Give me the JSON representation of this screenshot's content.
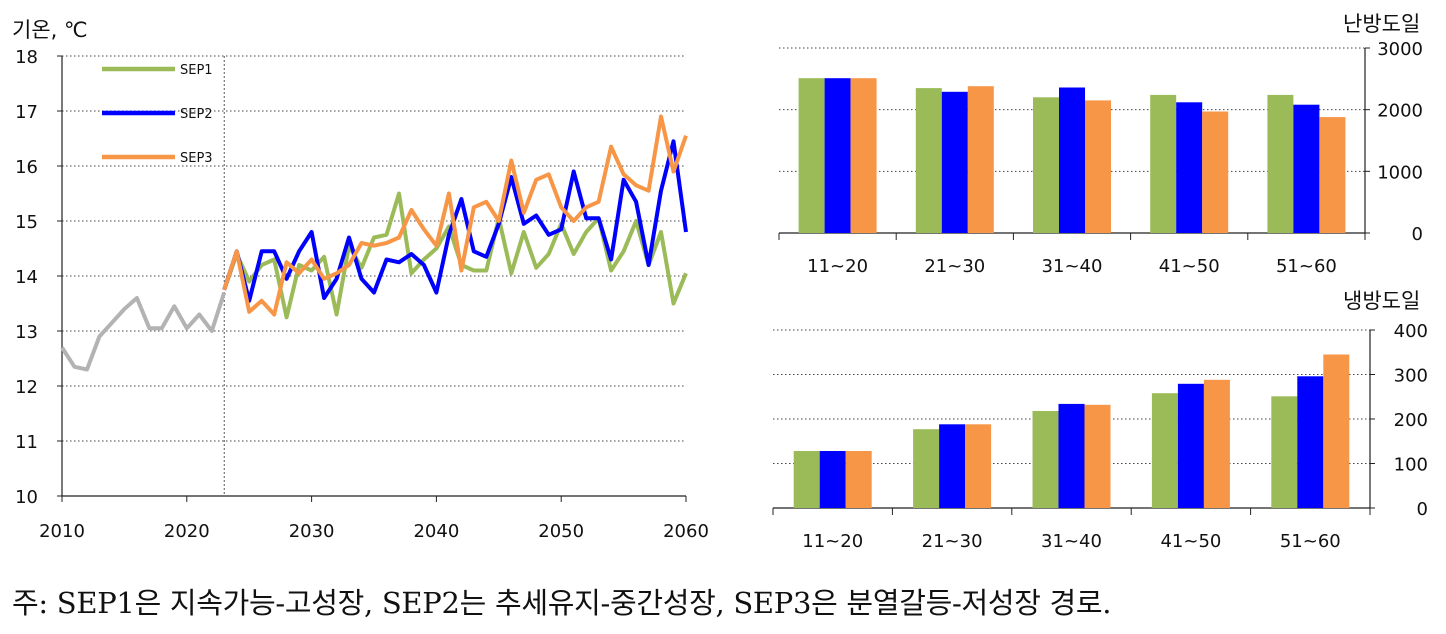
{
  "chart_data": [
    {
      "type": "line",
      "ylabel": "기온, ℃",
      "ylim": [
        10,
        18
      ],
      "yticks": [
        10,
        11,
        12,
        13,
        14,
        15,
        16,
        17,
        18
      ],
      "xlim": [
        2010,
        2060
      ],
      "xticks": [
        2010,
        2020,
        2030,
        2040,
        2050,
        2060
      ],
      "vertical_marker_x": 2023,
      "legend_position": "top-left",
      "colors": {
        "historical": "#b3b3b3",
        "SEP1": "#9bbb59",
        "SEP2": "#0000ff",
        "SEP3": "#f79646"
      },
      "historical": {
        "x": [
          2010,
          2011,
          2012,
          2013,
          2014,
          2015,
          2016,
          2017,
          2018,
          2019,
          2020,
          2021,
          2022,
          2023
        ],
        "values": [
          12.7,
          12.35,
          12.3,
          12.9,
          13.15,
          13.4,
          13.6,
          13.05,
          13.05,
          13.45,
          13.05,
          13.3,
          13.0,
          13.7
        ]
      },
      "series": [
        {
          "name": "SEP1",
          "x": [
            2023,
            2024,
            2025,
            2026,
            2027,
            2028,
            2029,
            2030,
            2031,
            2032,
            2033,
            2034,
            2035,
            2036,
            2037,
            2038,
            2039,
            2040,
            2041,
            2042,
            2043,
            2044,
            2045,
            2046,
            2047,
            2048,
            2049,
            2050,
            2051,
            2052,
            2053,
            2054,
            2055,
            2056,
            2057,
            2058,
            2059,
            2060
          ],
          "values": [
            13.75,
            14.4,
            13.9,
            14.2,
            14.3,
            13.25,
            14.2,
            14.1,
            14.35,
            13.3,
            14.55,
            14.15,
            14.7,
            14.75,
            15.5,
            14.05,
            14.3,
            14.5,
            14.9,
            14.2,
            14.1,
            14.1,
            15.05,
            14.05,
            14.8,
            14.15,
            14.4,
            14.95,
            14.4,
            14.8,
            15.05,
            14.1,
            14.45,
            15.0,
            14.2,
            14.8,
            13.5,
            14.05
          ]
        },
        {
          "name": "SEP2",
          "x": [
            2023,
            2024,
            2025,
            2026,
            2027,
            2028,
            2029,
            2030,
            2031,
            2032,
            2033,
            2034,
            2035,
            2036,
            2037,
            2038,
            2039,
            2040,
            2041,
            2042,
            2043,
            2044,
            2045,
            2046,
            2047,
            2048,
            2049,
            2050,
            2051,
            2052,
            2053,
            2054,
            2055,
            2056,
            2057,
            2058,
            2059,
            2060
          ],
          "values": [
            13.75,
            14.45,
            13.55,
            14.45,
            14.45,
            13.95,
            14.45,
            14.8,
            13.6,
            13.95,
            14.7,
            13.95,
            13.7,
            14.3,
            14.25,
            14.4,
            14.2,
            13.7,
            14.75,
            15.4,
            14.45,
            14.35,
            14.95,
            15.8,
            14.95,
            15.1,
            14.75,
            14.85,
            15.9,
            15.05,
            15.05,
            14.3,
            15.75,
            15.35,
            14.2,
            15.55,
            16.45,
            14.8
          ]
        },
        {
          "name": "SEP3",
          "x": [
            2023,
            2024,
            2025,
            2026,
            2027,
            2028,
            2029,
            2030,
            2031,
            2032,
            2033,
            2034,
            2035,
            2036,
            2037,
            2038,
            2039,
            2040,
            2041,
            2042,
            2043,
            2044,
            2045,
            2046,
            2047,
            2048,
            2049,
            2050,
            2051,
            2052,
            2053,
            2054,
            2055,
            2056,
            2057,
            2058,
            2059,
            2060
          ],
          "values": [
            13.75,
            14.45,
            13.35,
            13.55,
            13.3,
            14.25,
            14.05,
            14.3,
            13.95,
            14.05,
            14.2,
            14.6,
            14.55,
            14.6,
            14.7,
            15.2,
            14.85,
            14.55,
            15.5,
            14.1,
            15.25,
            15.35,
            15.0,
            16.1,
            15.15,
            15.75,
            15.85,
            15.25,
            15.0,
            15.25,
            15.35,
            16.35,
            15.85,
            15.65,
            15.55,
            16.9,
            15.9,
            16.55
          ]
        }
      ]
    },
    {
      "type": "bar",
      "title": "난방도일",
      "categories": [
        "11~20",
        "21~30",
        "31~40",
        "41~50",
        "51~60"
      ],
      "ylim": [
        0,
        3000
      ],
      "yticks": [
        0,
        1000,
        2000,
        3000
      ],
      "y_axis_position": "right",
      "series": [
        {
          "name": "SEP1",
          "color": "#9bbb59",
          "values": [
            2510,
            2350,
            2200,
            2240,
            2240
          ]
        },
        {
          "name": "SEP2",
          "color": "#0000ff",
          "values": [
            2510,
            2290,
            2360,
            2120,
            2080
          ]
        },
        {
          "name": "SEP3",
          "color": "#f79646",
          "values": [
            2510,
            2380,
            2150,
            1970,
            1880
          ]
        }
      ]
    },
    {
      "type": "bar",
      "title": "냉방도일",
      "categories": [
        "11~20",
        "21~30",
        "31~40",
        "41~50",
        "51~60"
      ],
      "ylim": [
        0,
        400
      ],
      "yticks": [
        0,
        100,
        200,
        300,
        400
      ],
      "y_axis_position": "right",
      "series": [
        {
          "name": "SEP1",
          "color": "#9bbb59",
          "values": [
            128,
            177,
            218,
            258,
            251
          ]
        },
        {
          "name": "SEP2",
          "color": "#0000ff",
          "values": [
            128,
            188,
            234,
            279,
            296
          ]
        },
        {
          "name": "SEP3",
          "color": "#f79646",
          "values": [
            128,
            188,
            232,
            288,
            345
          ]
        }
      ]
    }
  ],
  "footnote": "주: SEP1은 지속가능-고성장, SEP2는 추세유지-중간성장, SEP3은 분열갈등-저성장 경로."
}
